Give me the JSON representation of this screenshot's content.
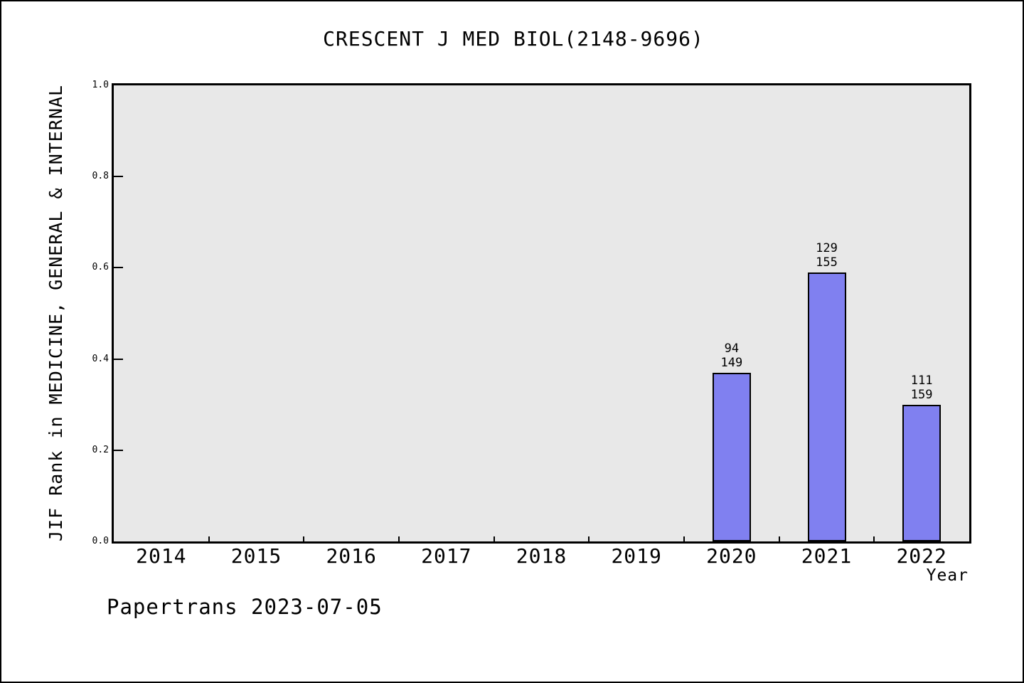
{
  "footer": "Papertrans 2023-07-05",
  "chart_data": {
    "type": "bar",
    "title": "CRESCENT J MED BIOL(2148-9696)",
    "xlabel": "Year",
    "ylabel": "JIF Rank in MEDICINE, GENERAL & INTERNAL",
    "categories": [
      "2014",
      "2015",
      "2016",
      "2017",
      "2018",
      "2019",
      "2020",
      "2021",
      "2022"
    ],
    "series": [
      {
        "name": "JIF Rank bar height (fraction of y-axis)",
        "values": [
          null,
          null,
          null,
          null,
          null,
          null,
          0.37,
          0.59,
          0.3
        ]
      }
    ],
    "bar_annotations": [
      {
        "category": "2020",
        "rank": "94",
        "total": "149"
      },
      {
        "category": "2021",
        "rank": "129",
        "total": "155"
      },
      {
        "category": "2022",
        "rank": "111",
        "total": "159"
      }
    ],
    "ylim": [
      0.0,
      1.0
    ],
    "yticks": [
      {
        "value": 0.0,
        "label": "0.0"
      },
      {
        "value": 0.2,
        "label": "0.2"
      },
      {
        "value": 0.4,
        "label": "0.4"
      },
      {
        "value": 0.6,
        "label": "0.6"
      },
      {
        "value": 0.8,
        "label": "0.8"
      },
      {
        "value": 1.0,
        "label": "1.0"
      }
    ],
    "grid": false,
    "legend": "none",
    "colors": {
      "bar_fill": "#8080f0",
      "bar_border": "#000000",
      "plot_background": "#e8e8e8",
      "page_background": "#ffffff",
      "axis": "#000000",
      "text": "#000000"
    }
  }
}
